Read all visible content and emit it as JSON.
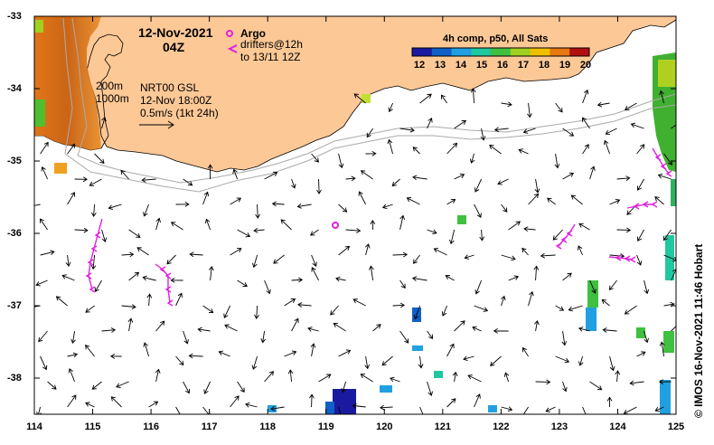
{
  "map": {
    "date": "12-Nov-2021",
    "hour": "04Z",
    "legend": {
      "argo_label": "Argo",
      "drifters_line1": "drifters@12h",
      "drifters_line2": "to 13/11 12Z",
      "argo_color": "#e020e0",
      "drifter_color": "#e020e0"
    },
    "contours": {
      "line1": "200m",
      "line2": "1000m"
    },
    "product": {
      "line1": "NRT00 GSL",
      "line2": "12-Nov 18:00Z",
      "line3": "0.5m/s (1kt 24h)"
    },
    "colorbar": {
      "title": "4h comp, p50, All Sats",
      "ticks": [
        "12",
        "13",
        "14",
        "15",
        "16",
        "17",
        "18",
        "19",
        "20"
      ],
      "colors": [
        "#1a1aa0",
        "#1060c8",
        "#20a0e0",
        "#20c8a0",
        "#40c040",
        "#a0d020",
        "#f0c000",
        "#e87810",
        "#b01010"
      ]
    },
    "credit": "© IMOS 16-Nov-2021 11:46 Hobart",
    "axes": {
      "x_ticks": [
        "114",
        "115",
        "116",
        "117",
        "118",
        "119",
        "120",
        "121",
        "122",
        "123",
        "124",
        "125"
      ],
      "y_ticks": [
        "-33",
        "-34",
        "-35",
        "-36",
        "-37",
        "-38"
      ],
      "x_range": [
        114,
        125
      ],
      "y_range": [
        -38.5,
        -33
      ]
    },
    "land_color": "#fcc896"
  }
}
